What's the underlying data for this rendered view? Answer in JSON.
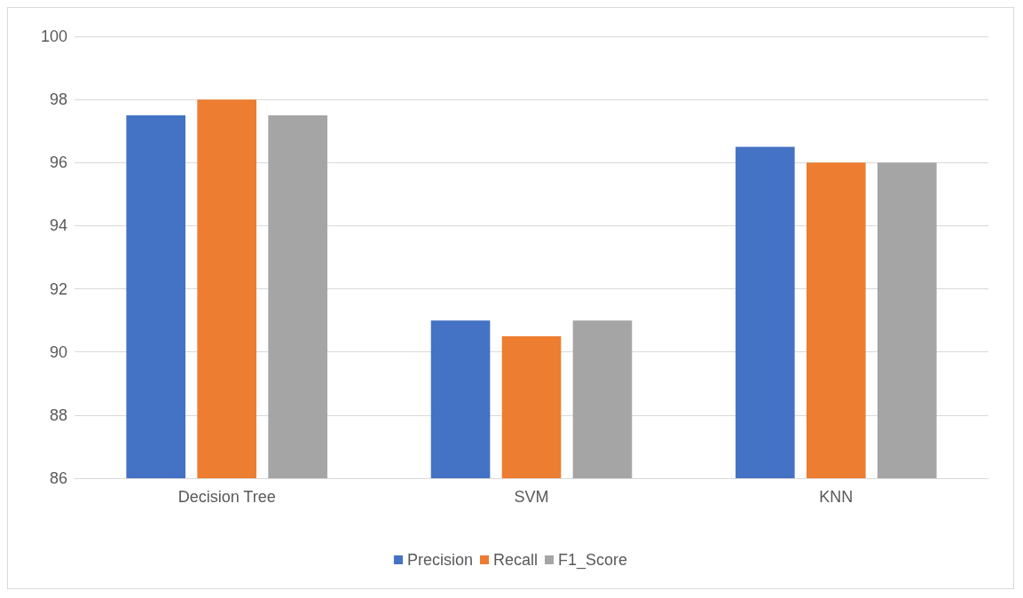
{
  "chart_data": {
    "type": "bar",
    "categories": [
      "Decision Tree",
      "SVM",
      "KNN"
    ],
    "series": [
      {
        "name": "Precision",
        "color": "#4472c4",
        "values": [
          97.5,
          91,
          96.5
        ]
      },
      {
        "name": "Recall",
        "color": "#ed7d31",
        "values": [
          98,
          90.5,
          96
        ]
      },
      {
        "name": "F1_Score",
        "color": "#a5a5a5",
        "values": [
          97.5,
          91,
          96
        ]
      }
    ],
    "ylim": [
      86,
      100
    ],
    "yticks": [
      86,
      88,
      90,
      92,
      94,
      96,
      98,
      100
    ],
    "grid": "y",
    "legend": "bottom"
  }
}
